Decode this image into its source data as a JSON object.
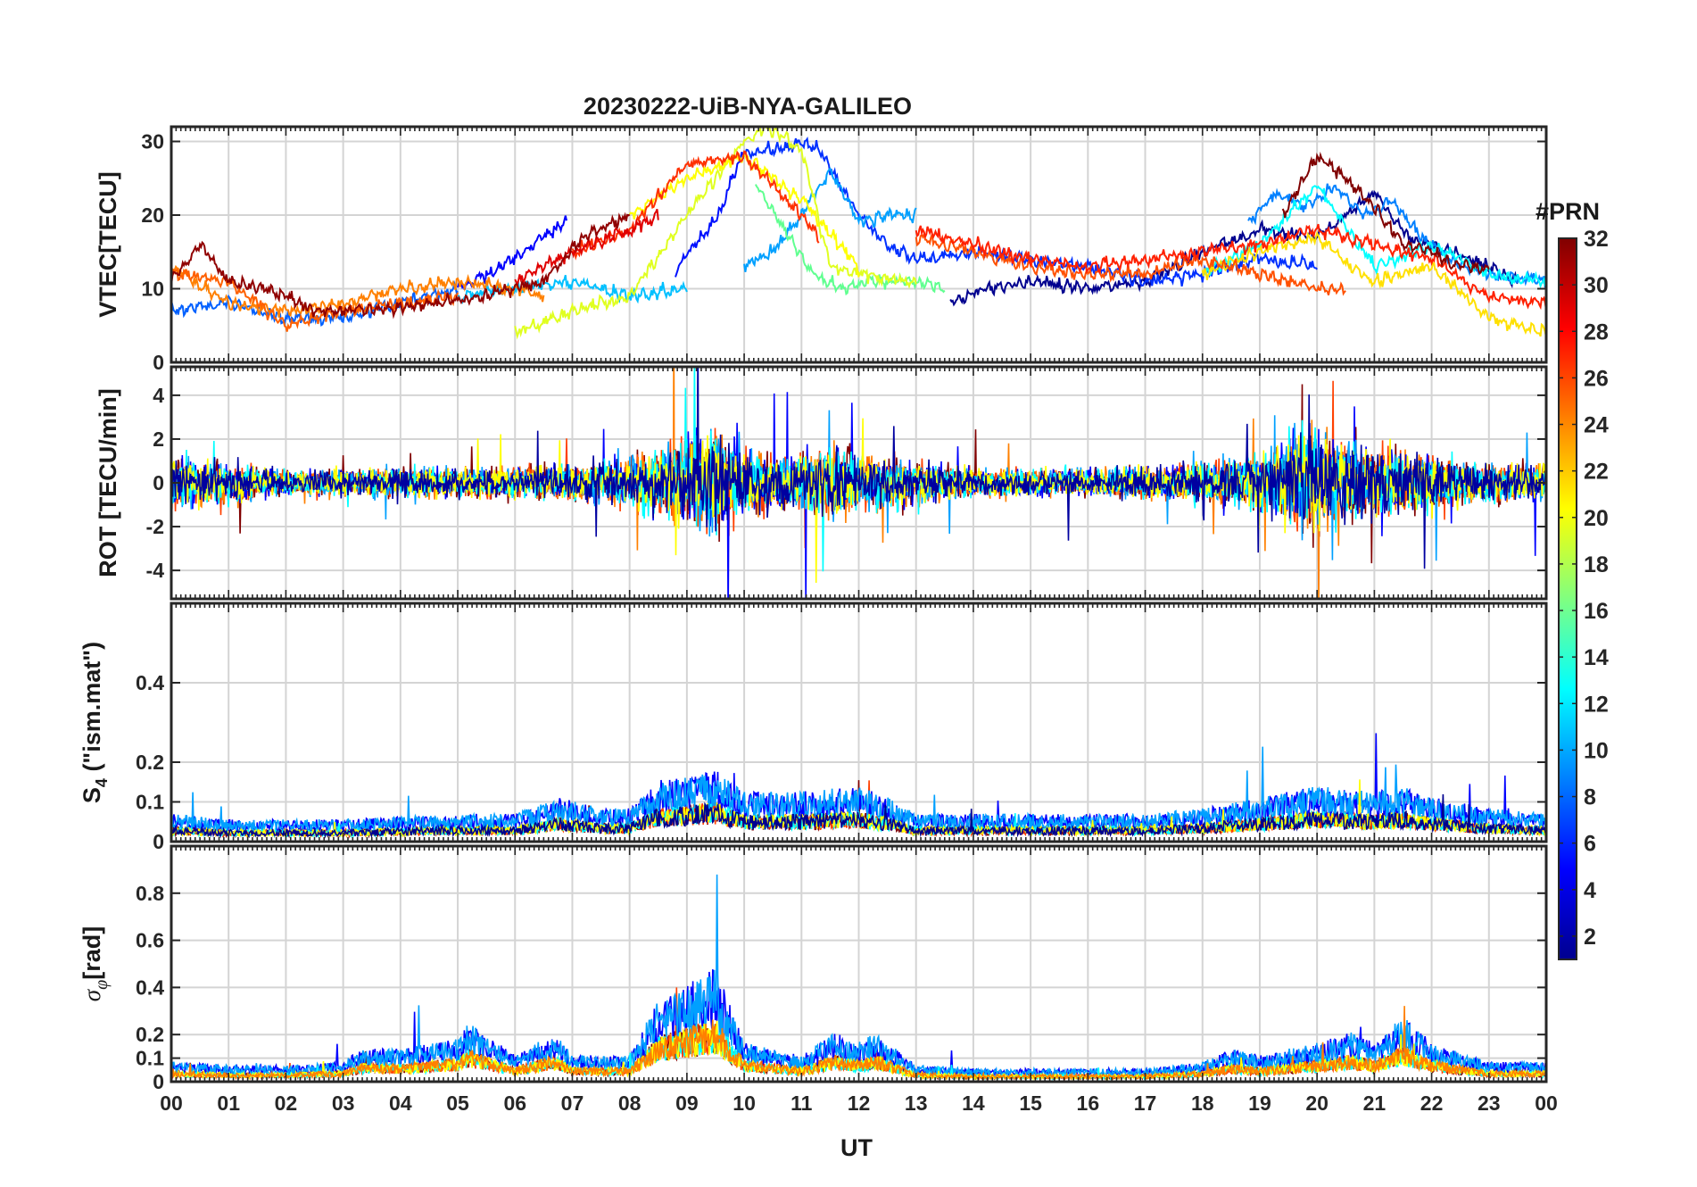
{
  "chart_data": {
    "type": "line",
    "title": "20230222-UiB-NYA-GALILEO",
    "xlabel": "UT",
    "x_tick_labels": [
      "00",
      "01",
      "02",
      "03",
      "04",
      "05",
      "06",
      "07",
      "08",
      "09",
      "10",
      "11",
      "12",
      "13",
      "14",
      "15",
      "16",
      "17",
      "18",
      "19",
      "20",
      "21",
      "22",
      "23",
      "00"
    ],
    "xlim": [
      0,
      24
    ],
    "grid": true,
    "colorbar": {
      "title": "#PRN",
      "colormap": "jet",
      "range": [
        1,
        32
      ],
      "tick_labels": [
        "2",
        "4",
        "6",
        "8",
        "10",
        "12",
        "14",
        "16",
        "18",
        "20",
        "22",
        "24",
        "26",
        "28",
        "30",
        "32"
      ],
      "colors_low_to_high": [
        "#00008f",
        "#0000ff",
        "#0080ff",
        "#00ffff",
        "#80ff80",
        "#ffff00",
        "#ff8000",
        "#ff0000",
        "#800000"
      ]
    },
    "panels": [
      {
        "id": "vtec",
        "ylabel": "VTEC[TECU]",
        "ylim": [
          0,
          32
        ],
        "y_ticks": [
          0,
          10,
          20,
          30
        ],
        "y_tick_labels": [
          "0",
          "10",
          "20",
          "30"
        ],
        "series": [
          {
            "prn": 1,
            "color": "#00008f",
            "x": [
              13.6,
              14.2,
              15,
              16,
              17,
              18,
              19,
              20,
              21,
              21.6,
              22,
              23,
              23.5
            ],
            "y": [
              8,
              10,
              11,
              10,
              11,
              15,
              18,
              17,
              23,
              17,
              16,
              13,
              11
            ]
          },
          {
            "prn": 4,
            "color": "#0000ff",
            "x": [
              5,
              5.5,
              6,
              6.5,
              6.9
            ],
            "y": [
              10,
              12,
              14,
              17,
              19
            ]
          },
          {
            "prn": 5,
            "color": "#0010ff",
            "x": [
              8.8,
              9,
              9.3,
              9.6,
              9.8,
              10
            ],
            "y": [
              12,
              15,
              17,
              21,
              25,
              29
            ]
          },
          {
            "prn": 6,
            "color": "#0030ff",
            "x": [
              10,
              10.5,
              11,
              11.3,
              11.6,
              12,
              12.5,
              13,
              14,
              15,
              16,
              17,
              18,
              19,
              20
            ],
            "y": [
              28,
              29,
              30,
              29,
              25,
              20,
              16,
              14,
              15,
              14,
              13,
              11,
              12,
              14,
              13
            ]
          },
          {
            "prn": 8,
            "color": "#0060ff",
            "x": [
              0,
              1,
              2,
              3,
              4,
              5
            ],
            "y": [
              7,
              8,
              6,
              6,
              8,
              10
            ]
          },
          {
            "prn": 9,
            "color": "#0080ff",
            "x": [
              18.8,
              19.3,
              19.8,
              20.3,
              20.8,
              21.3,
              21.8,
              22.5,
              23,
              24
            ],
            "y": [
              19,
              23,
              21,
              24,
              20,
              22,
              17,
              13,
              12,
              11
            ]
          },
          {
            "prn": 10,
            "color": "#00a0ff",
            "x": [
              10,
              10.5,
              11,
              11.5,
              12,
              12.5,
              13
            ],
            "y": [
              13,
              15,
              20,
              26,
              19,
              20,
              20
            ]
          },
          {
            "prn": 11,
            "color": "#00c0ff",
            "x": [
              5,
              6,
              7,
              8,
              9
            ],
            "y": [
              9,
              10,
              11,
              9,
              10
            ]
          },
          {
            "prn": 12,
            "color": "#00ffff",
            "x": [
              18,
              19,
              20,
              21,
              22,
              23,
              24
            ],
            "y": [
              12,
              16,
              24,
              13,
              16,
              12,
              11
            ]
          },
          {
            "prn": 15,
            "color": "#60ff90",
            "x": [
              10.2,
              10.7,
              11.2,
              11.7,
              12.2,
              13,
              13.5
            ],
            "y": [
              24,
              18,
              12,
              10,
              11,
              11,
              10
            ]
          },
          {
            "prn": 19,
            "color": "#e0ff20",
            "x": [
              6,
              7,
              8,
              9,
              10,
              10.4,
              11,
              11.5,
              12,
              13
            ],
            "y": [
              4,
              7,
              9,
              20,
              30,
              32,
              29,
              13,
              12,
              11
            ]
          },
          {
            "prn": 20,
            "color": "#ffff00",
            "x": [
              8,
              9,
              10,
              11,
              12
            ],
            "y": [
              20,
              25,
              28,
              22,
              13
            ]
          },
          {
            "prn": 21,
            "color": "#ffe000",
            "x": [
              18,
              19,
              20,
              20.6,
              21,
              22,
              23,
              24
            ],
            "y": [
              12,
              15,
              17,
              13,
              11,
              13,
              6,
              4
            ]
          },
          {
            "prn": 23,
            "color": "#ff8000",
            "x": [
              0,
              1,
              2,
              3,
              4,
              5,
              6,
              6.5
            ],
            "y": [
              13,
              8,
              7,
              8,
              10,
              11,
              10,
              9
            ]
          },
          {
            "prn": 24,
            "color": "#ff6000",
            "x": [
              0,
              1,
              2,
              3,
              4,
              5
            ],
            "y": [
              12,
              11,
              5,
              7,
              8,
              9
            ]
          },
          {
            "prn": 25,
            "color": "#ff5000",
            "x": [
              13,
              14,
              15,
              16,
              17,
              18,
              19,
              20,
              20.5
            ],
            "y": [
              17,
              15,
              13,
              12,
              12,
              14,
              12,
              10,
              10
            ]
          },
          {
            "prn": 26,
            "color": "#ff3000",
            "x": [
              7,
              8,
              9,
              10,
              11,
              11.3
            ],
            "y": [
              15,
              18,
              27,
              28,
              20,
              17
            ]
          },
          {
            "prn": 27,
            "color": "#ff2000",
            "x": [
              13,
              14,
              15,
              16,
              17,
              18,
              19,
              20,
              21,
              22,
              23,
              24
            ],
            "y": [
              18,
              16,
              14,
              13,
              14,
              15,
              16,
              18,
              16,
              14,
              9,
              8
            ]
          },
          {
            "prn": 28,
            "color": "#e00000",
            "x": [
              6,
              7,
              8,
              8.5
            ],
            "y": [
              11,
              15,
              18,
              20
            ]
          },
          {
            "prn": 31,
            "color": "#900000",
            "x": [
              0,
              0.5,
              1,
              1.7,
              2.5,
              3.5,
              4.5,
              5.5,
              6.5,
              7.2,
              8
            ],
            "y": [
              11,
              16,
              11,
              10,
              7,
              7,
              8,
              9,
              11,
              17,
              20
            ]
          },
          {
            "prn": 32,
            "color": "#800000",
            "x": [
              19.4,
              20,
              20.5,
              21,
              21.5,
              22,
              22.5,
              23
            ],
            "y": [
              20,
              28,
              25,
              21,
              16,
              15,
              13,
              13
            ]
          }
        ]
      },
      {
        "id": "rot",
        "ylabel": "ROT [TECU/min]",
        "ylim": [
          -5.3,
          5.3
        ],
        "y_ticks": [
          -4,
          -2,
          0,
          2,
          4
        ],
        "y_tick_labels": [
          "-4",
          "-2",
          "0",
          "2",
          "4"
        ],
        "activity_profile": {
          "x": [
            0,
            1,
            2,
            3,
            4,
            5,
            6,
            7,
            8,
            9,
            9.5,
            10,
            11,
            11.6,
            12,
            13,
            14,
            15,
            16,
            17,
            18,
            19,
            19.8,
            20.5,
            21,
            22,
            23,
            24
          ],
          "amplitude": [
            1.8,
            1.2,
            0.8,
            0.9,
            1.0,
            1.0,
            1.0,
            1.2,
            1.5,
            2.8,
            3.5,
            2.0,
            1.8,
            2.6,
            1.8,
            1.4,
            1.0,
            0.9,
            0.9,
            1.0,
            1.3,
            1.8,
            3.5,
            3.0,
            2.2,
            1.8,
            1.2,
            1.2
          ]
        },
        "series_colors": [
          "#800000",
          "#ff4000",
          "#ff8000",
          "#0000ff",
          "#00a0ff",
          "#00ffff",
          "#ffff00",
          "#0000a0"
        ]
      },
      {
        "id": "s4",
        "ylabel": "S4 (\"ism.mat\")",
        "ylim": [
          0,
          0.6
        ],
        "y_ticks": [
          0,
          0.1,
          0.2,
          0.4
        ],
        "y_tick_labels": [
          "0",
          "0.1",
          "0.2",
          "0.4"
        ],
        "level_profile": {
          "x": [
            0,
            1,
            2,
            3,
            4,
            5,
            6,
            6.8,
            7.5,
            8,
            8.5,
            9,
            9.5,
            10,
            11,
            12,
            12.5,
            13,
            14,
            15,
            16,
            17,
            18,
            19,
            20,
            21,
            21.5,
            22,
            23,
            24
          ],
          "level": [
            0.05,
            0.04,
            0.04,
            0.04,
            0.045,
            0.05,
            0.05,
            0.08,
            0.06,
            0.06,
            0.11,
            0.12,
            0.13,
            0.09,
            0.09,
            0.1,
            0.08,
            0.05,
            0.05,
            0.05,
            0.05,
            0.05,
            0.06,
            0.08,
            0.1,
            0.09,
            0.1,
            0.08,
            0.06,
            0.05
          ]
        },
        "series_colors": [
          "#800000",
          "#ff4000",
          "#0000ff",
          "#00a0ff",
          "#00ffff",
          "#ffff00",
          "#00008f"
        ]
      },
      {
        "id": "sigma_phi",
        "ylabel": "σφ[rad]",
        "ylim": [
          0,
          1.0
        ],
        "y_ticks": [
          0,
          0.1,
          0.2,
          0.4,
          0.6,
          0.8
        ],
        "y_tick_labels": [
          "0",
          "0.1",
          "0.2",
          "0.4",
          "0.6",
          "0.8"
        ],
        "level_profile": {
          "x": [
            0,
            1,
            2,
            3,
            3.3,
            4,
            5,
            5.2,
            6,
            6.7,
            7,
            8,
            8.5,
            9,
            9.5,
            10,
            10.5,
            11,
            11.6,
            12,
            12.3,
            13,
            14,
            15,
            16,
            17,
            18,
            18.5,
            19,
            19.5,
            20,
            20.6,
            21,
            21.5,
            22,
            23,
            24
          ],
          "level": [
            0.06,
            0.05,
            0.05,
            0.06,
            0.1,
            0.1,
            0.13,
            0.18,
            0.08,
            0.15,
            0.08,
            0.08,
            0.25,
            0.3,
            0.35,
            0.12,
            0.1,
            0.08,
            0.15,
            0.12,
            0.15,
            0.05,
            0.04,
            0.04,
            0.04,
            0.04,
            0.06,
            0.1,
            0.08,
            0.1,
            0.12,
            0.15,
            0.12,
            0.2,
            0.12,
            0.06,
            0.06
          ]
        },
        "series_colors": [
          "#800000",
          "#ff4000",
          "#0000ff",
          "#00a0ff",
          "#00ffff",
          "#ffff00",
          "#ff8000"
        ]
      }
    ]
  }
}
